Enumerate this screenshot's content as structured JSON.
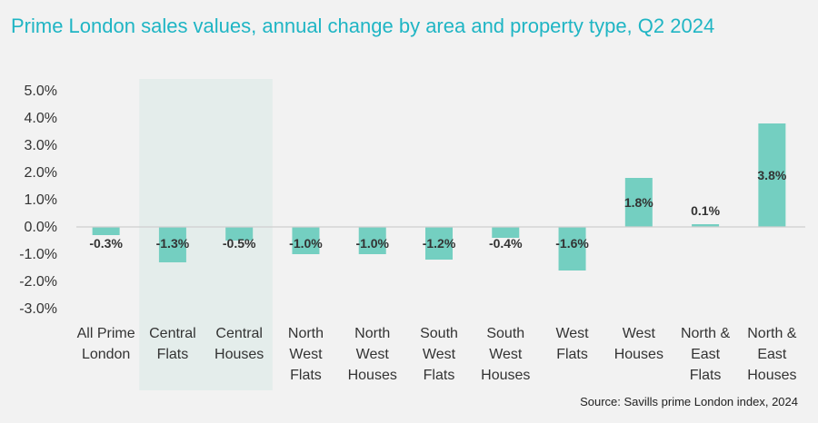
{
  "title": "Prime London sales values, annual change by area and property type, Q2 2024",
  "source": "Source: Savills prime London index, 2024",
  "colors": {
    "bar": "#74cfc1",
    "highlight": "#e4edeb",
    "title": "#1fb5c4",
    "background": "#f2f2f2"
  },
  "chart_data": {
    "type": "bar",
    "title": "Prime London sales values, annual change by area and property type, Q2 2024",
    "categories": [
      [
        "All Prime",
        "London"
      ],
      [
        "Central",
        "Flats"
      ],
      [
        "Central",
        "Houses"
      ],
      [
        "North",
        "West",
        "Flats"
      ],
      [
        "North",
        "West",
        "Houses"
      ],
      [
        "South",
        "West",
        "Flats"
      ],
      [
        "South",
        "West",
        "Houses"
      ],
      [
        "West",
        "Flats"
      ],
      [
        "West",
        "Houses"
      ],
      [
        "North &",
        "East",
        "Flats"
      ],
      [
        "North &",
        "East",
        "Houses"
      ]
    ],
    "values": [
      -0.3,
      -1.3,
      -0.5,
      -1.0,
      -1.0,
      -1.2,
      -0.4,
      -1.6,
      1.8,
      0.1,
      3.8
    ],
    "data_labels": [
      "-0.3%",
      "-1.3%",
      "-0.5%",
      "-1.0%",
      "-1.0%",
      "-1.2%",
      "-0.4%",
      "-1.6%",
      "1.8%",
      "0.1%",
      "3.8%"
    ],
    "y_ticks": [
      "5.0%",
      "4.0%",
      "3.0%",
      "2.0%",
      "1.0%",
      "0.0%",
      "-1.0%",
      "-2.0%",
      "-3.0%"
    ],
    "ylim": [
      -3,
      5
    ],
    "highlighted_categories": [
      1,
      2
    ],
    "grid": false,
    "legend": "none",
    "xlabel": "",
    "ylabel": ""
  }
}
